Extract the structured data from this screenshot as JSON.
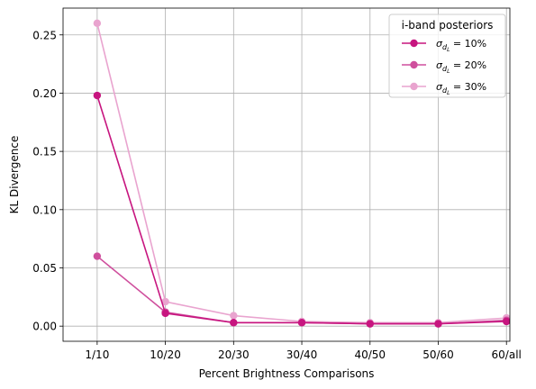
{
  "chart_data": {
    "type": "line",
    "xlabel": "Percent Brightness Comparisons",
    "ylabel": "KL Divergence",
    "categories": [
      "1/10",
      "10/20",
      "20/30",
      "30/40",
      "40/50",
      "50/60",
      "60/all"
    ],
    "yticks": [
      "0.00",
      "0.05",
      "0.10",
      "0.15",
      "0.20",
      "0.25"
    ],
    "ylim": [
      -0.013,
      0.273
    ],
    "grid": true,
    "legend": {
      "title": "i-band posteriors",
      "placement": "top-right"
    },
    "series": [
      {
        "name": "σ_{d_L} = 10%",
        "sym": "σ",
        "sub": "d",
        "subsub": "L",
        "rest": " = 10%",
        "color": "#c7157f",
        "opacity": 1.0,
        "values": [
          0.198,
          0.011,
          0.003,
          0.003,
          0.002,
          0.002,
          0.004
        ]
      },
      {
        "name": "σ_{d_L} = 20%",
        "sym": "σ",
        "sub": "d",
        "subsub": "L",
        "rest": " = 20%",
        "color": "#cf4f9d",
        "opacity": 1.0,
        "values": [
          0.06,
          0.012,
          0.003,
          0.003,
          0.002,
          0.002,
          0.005
        ]
      },
      {
        "name": "σ_{d_L} = 30%",
        "sym": "σ",
        "sub": "d",
        "subsub": "L",
        "rest": " = 30%",
        "color": "#e9a4cf",
        "opacity": 1.0,
        "values": [
          0.26,
          0.021,
          0.009,
          0.004,
          0.003,
          0.003,
          0.007
        ]
      }
    ]
  }
}
